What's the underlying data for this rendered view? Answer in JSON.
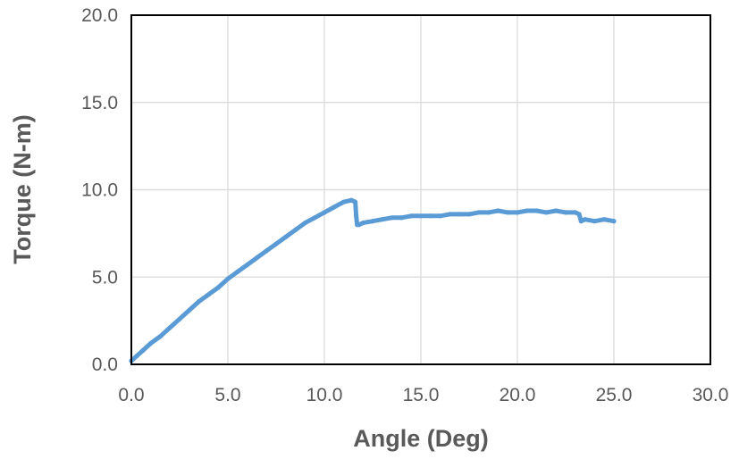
{
  "chart_data": {
    "type": "line",
    "xlabel": "Angle (Deg)",
    "ylabel": "Torque (N-m)",
    "xlim": [
      0,
      30
    ],
    "ylim": [
      0,
      20
    ],
    "x_ticks": [
      "0.0",
      "5.0",
      "10.0",
      "15.0",
      "20.0",
      "25.0",
      "30.0"
    ],
    "y_ticks": [
      "0.0",
      "5.0",
      "10.0",
      "15.0",
      "20.0"
    ],
    "grid": true,
    "legend": "none",
    "line_color": "#5B9BD5",
    "series": [
      {
        "x": [
          0.0,
          0.3,
          0.6,
          1.0,
          1.5,
          2.0,
          2.5,
          3.0,
          3.5,
          4.0,
          4.5,
          5.0,
          5.5,
          6.0,
          6.5,
          7.0,
          7.5,
          8.0,
          8.5,
          9.0,
          9.5,
          10.0,
          10.5,
          11.0,
          11.4,
          11.6,
          11.65,
          11.7,
          11.8,
          12.0,
          12.5,
          13.0,
          13.5,
          14.0,
          14.5,
          15.0,
          15.5,
          16.0,
          16.5,
          17.0,
          17.5,
          18.0,
          18.5,
          19.0,
          19.5,
          20.0,
          20.5,
          21.0,
          21.5,
          22.0,
          22.5,
          23.0,
          23.2,
          23.3,
          23.5,
          24.0,
          24.5,
          25.0
        ],
        "y": [
          0.2,
          0.5,
          0.8,
          1.2,
          1.6,
          2.1,
          2.6,
          3.1,
          3.6,
          4.0,
          4.4,
          4.9,
          5.3,
          5.7,
          6.1,
          6.5,
          6.9,
          7.3,
          7.7,
          8.1,
          8.4,
          8.7,
          9.0,
          9.3,
          9.4,
          9.3,
          8.5,
          8.0,
          8.0,
          8.1,
          8.2,
          8.3,
          8.4,
          8.4,
          8.5,
          8.5,
          8.5,
          8.5,
          8.6,
          8.6,
          8.6,
          8.7,
          8.7,
          8.8,
          8.7,
          8.7,
          8.8,
          8.8,
          8.7,
          8.8,
          8.7,
          8.7,
          8.6,
          8.2,
          8.3,
          8.2,
          8.3,
          8.2
        ]
      }
    ]
  }
}
